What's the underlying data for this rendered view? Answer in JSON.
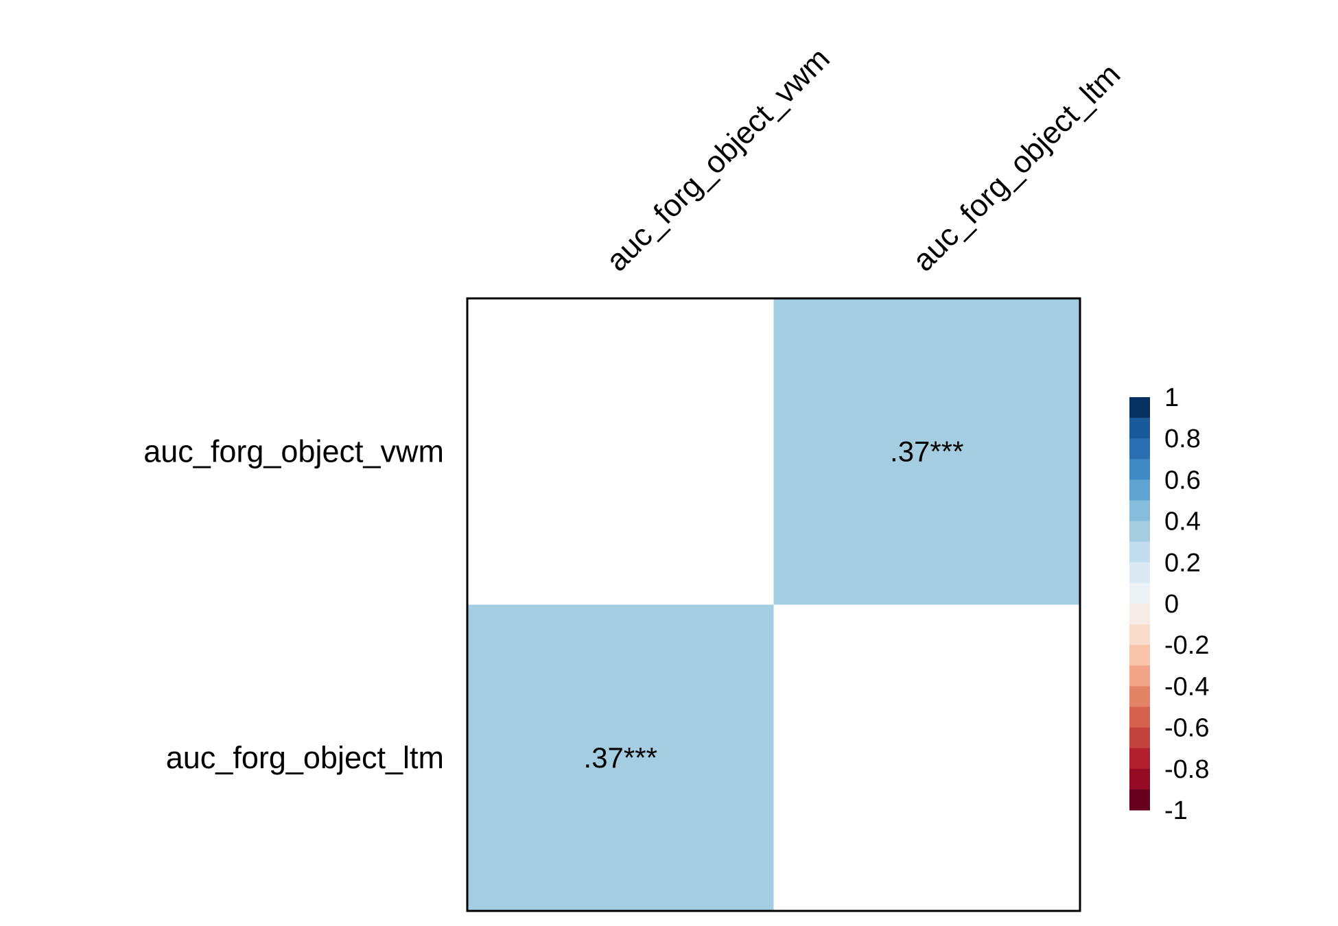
{
  "chart_data": {
    "type": "heatmap",
    "variables": [
      "auc_forg_object_vwm",
      "auc_forg_object_ltm"
    ],
    "matrix": [
      [
        null,
        0.37
      ],
      [
        0.37,
        null
      ]
    ],
    "cell_labels": [
      [
        "",
        ".37***"
      ],
      [
        ".37***",
        ""
      ]
    ],
    "colorbar": {
      "range": [
        -1,
        1
      ],
      "ticks": [
        1,
        0.8,
        0.6,
        0.4,
        0.2,
        0,
        -0.2,
        -0.4,
        -0.6,
        -0.8,
        -1
      ],
      "tick_labels": [
        "1",
        "0.8",
        "0.6",
        "0.4",
        "0.2",
        "0",
        "-0.2",
        "-0.4",
        "-0.6",
        "-0.8",
        "-1"
      ],
      "colors_top_to_bottom": [
        "#053061",
        "#1b5a9a",
        "#2b6fb3",
        "#3f8ac4",
        "#5fa4d1",
        "#87bddc",
        "#a4cde2",
        "#c2dded",
        "#dbe9f3",
        "#ebf1f5",
        "#f6ece6",
        "#fadccd",
        "#f8c3a8",
        "#f2a588",
        "#e48467",
        "#d4614e",
        "#c3423e",
        "#b21f2e",
        "#950b25",
        "#67001f"
      ],
      "placement": "right"
    },
    "diagonal_color": "#ffffff",
    "cell_color": "#a4cde2"
  }
}
